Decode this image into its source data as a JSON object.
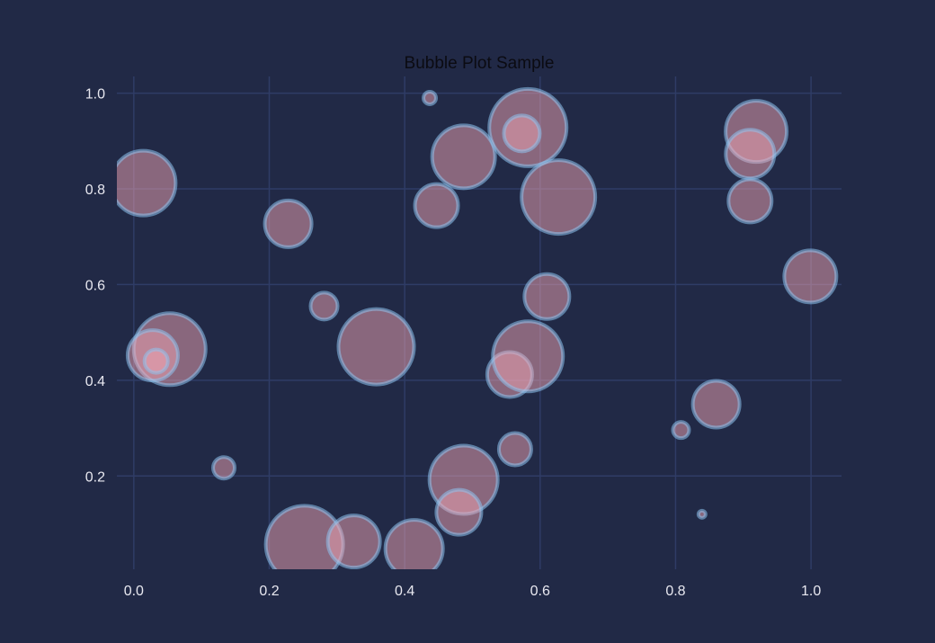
{
  "chart_data": {
    "type": "scatter",
    "title": "Bubble Plot Sample",
    "xlabel": "",
    "ylabel": "",
    "xlim": [
      -0.025,
      1.045
    ],
    "ylim": [
      0.005,
      1.035
    ],
    "x_ticks": [
      "0.0",
      "0.2",
      "0.4",
      "0.6",
      "0.8",
      "1.0"
    ],
    "x_tick_values": [
      0.0,
      0.2,
      0.4,
      0.6,
      0.8,
      1.0
    ],
    "y_ticks": [
      "0.2",
      "0.4",
      "0.6",
      "0.8",
      "1.0"
    ],
    "y_tick_values": [
      0.2,
      0.4,
      0.6,
      0.8,
      1.0
    ],
    "grid": true,
    "colors": {
      "background": "#212946",
      "grid": "#2f3c66",
      "bubble_fill": "#f2a6b4",
      "bubble_edge": "#8ec3ee",
      "text": "#e8e8f0",
      "title": "#0b0b12"
    },
    "points": [
      {
        "x": 0.014,
        "y": 0.812,
        "size": 36
      },
      {
        "x": 0.053,
        "y": 0.465,
        "size": 40
      },
      {
        "x": 0.028,
        "y": 0.452,
        "size": 28
      },
      {
        "x": 0.033,
        "y": 0.44,
        "size": 13
      },
      {
        "x": 0.133,
        "y": 0.217,
        "size": 12
      },
      {
        "x": 0.228,
        "y": 0.727,
        "size": 26
      },
      {
        "x": 0.252,
        "y": 0.057,
        "size": 43
      },
      {
        "x": 0.281,
        "y": 0.555,
        "size": 15
      },
      {
        "x": 0.325,
        "y": 0.063,
        "size": 29
      },
      {
        "x": 0.358,
        "y": 0.47,
        "size": 42
      },
      {
        "x": 0.414,
        "y": 0.048,
        "size": 32
      },
      {
        "x": 0.437,
        "y": 0.99,
        "size": 7
      },
      {
        "x": 0.447,
        "y": 0.765,
        "size": 24
      },
      {
        "x": 0.487,
        "y": 0.867,
        "size": 35
      },
      {
        "x": 0.487,
        "y": 0.192,
        "size": 38
      },
      {
        "x": 0.48,
        "y": 0.124,
        "size": 25
      },
      {
        "x": 0.555,
        "y": 0.412,
        "size": 25
      },
      {
        "x": 0.563,
        "y": 0.256,
        "size": 18
      },
      {
        "x": 0.582,
        "y": 0.45,
        "size": 39
      },
      {
        "x": 0.582,
        "y": 0.928,
        "size": 43
      },
      {
        "x": 0.573,
        "y": 0.916,
        "size": 20
      },
      {
        "x": 0.61,
        "y": 0.575,
        "size": 25
      },
      {
        "x": 0.627,
        "y": 0.783,
        "size": 41
      },
      {
        "x": 0.808,
        "y": 0.296,
        "size": 9
      },
      {
        "x": 0.839,
        "y": 0.12,
        "size": 4
      },
      {
        "x": 0.86,
        "y": 0.35,
        "size": 26
      },
      {
        "x": 0.919,
        "y": 0.92,
        "size": 34
      },
      {
        "x": 0.91,
        "y": 0.873,
        "size": 27
      },
      {
        "x": 0.91,
        "y": 0.775,
        "size": 24
      },
      {
        "x": 0.999,
        "y": 0.617,
        "size": 29
      }
    ]
  }
}
